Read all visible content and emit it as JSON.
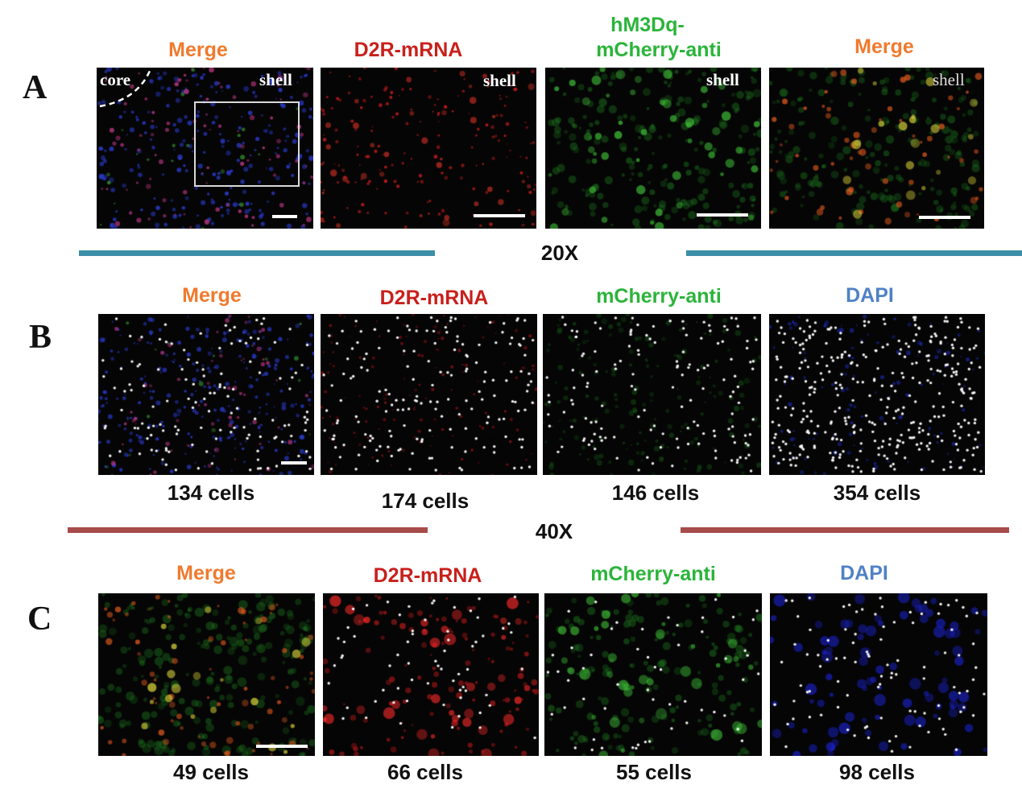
{
  "row_labels": {
    "a": "A",
    "b": "B",
    "c": "C"
  },
  "row_a": {
    "titles": [
      "Merge",
      "D2R-mRNA",
      "hM3Dq-",
      "mCherry-anti",
      "Merge"
    ],
    "region_labels": {
      "core": "core",
      "shell_1": "shell",
      "shell_2": "shell",
      "shell_3": "shell",
      "shell_4": "shell"
    }
  },
  "magnification": {
    "first": "20X",
    "second": "40X"
  },
  "row_b": {
    "titles": [
      "Merge",
      "D2R-mRNA",
      "mCherry-anti",
      "DAPI"
    ],
    "counts": [
      "134 cells",
      "174 cells",
      "146 cells",
      "354 cells"
    ]
  },
  "row_c": {
    "titles": [
      "Merge",
      "D2R-mRNA",
      "mCherry-anti",
      "DAPI"
    ],
    "counts": [
      "49 cells",
      "66 cells",
      "55 cells",
      "98 cells"
    ]
  },
  "colors": {
    "merge_title": "#f07a2d",
    "d2r_title": "#c8201c",
    "mcherry_title": "#2bb43a",
    "dapi_title": "#4f82c6",
    "divider_20x": "#3d8ea8",
    "divider_40x": "#a84b4b"
  }
}
